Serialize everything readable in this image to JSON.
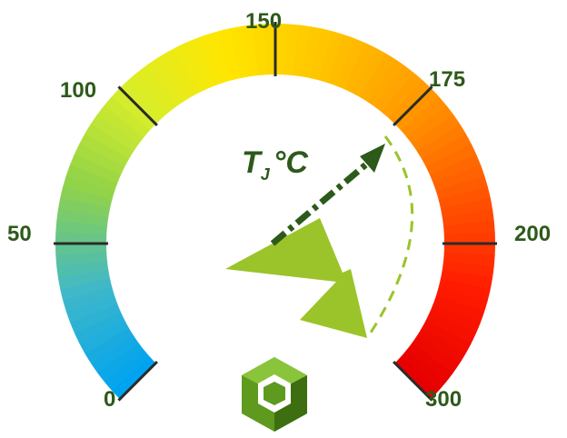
{
  "gauge": {
    "title_main": "T",
    "title_sub": "J",
    "title_unit": "°C",
    "ticks": [
      {
        "label": "0",
        "value": 0
      },
      {
        "label": "50",
        "value": 50
      },
      {
        "label": "100",
        "value": 100
      },
      {
        "label": "150",
        "value": 150
      },
      {
        "label": "175",
        "value": 175
      },
      {
        "label": "200",
        "value": 200
      },
      {
        "label": "300",
        "value": 300
      }
    ],
    "colors": {
      "label": "#2d5a1a",
      "arrow": "#9ac42a",
      "indicator": "#2d5a1a",
      "gradient": [
        "#00a3f0",
        "#3fb8c8",
        "#8fd24a",
        "#d8ee2a",
        "#ffe600",
        "#ffc400",
        "#ff9a00",
        "#ff5a00",
        "#ff1a00",
        "#e60000"
      ]
    },
    "icons": [
      "gauge-arc",
      "tick-mark",
      "lightning-arrow-icon",
      "dash-dot-arrow-icon",
      "cube-logo-icon"
    ]
  }
}
